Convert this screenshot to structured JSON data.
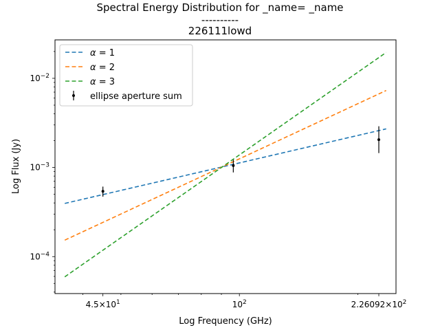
{
  "chart_data": {
    "type": "line",
    "title": [
      "Spectral Energy Distribution for _name=  _name",
      "----------",
      "226111lowd"
    ],
    "xlabel": "Log Frequency (GHz)",
    "ylabel": "Log Flux (Jy)",
    "x_scale": "log",
    "y_scale": "log",
    "xlim": [
      34,
      250
    ],
    "ylim": [
      3.85e-05,
      0.027
    ],
    "x_ticks": [
      {
        "value": 45,
        "mant": "4.5",
        "exp": "1"
      },
      {
        "value": 100,
        "mant": "",
        "exp": "2"
      },
      {
        "value": 226.092,
        "mant": "2.26092",
        "exp": "2"
      }
    ],
    "y_ticks": [
      {
        "value": 0.0001,
        "exp": "−4"
      },
      {
        "value": 0.001,
        "exp": "−3"
      },
      {
        "value": 0.01,
        "exp": "−2"
      }
    ],
    "legend_position": "top-left",
    "series": [
      {
        "name": "α = 1",
        "symbol": "α",
        "rest": " = 1",
        "color": "#1f77b4",
        "style": "dashed",
        "x": [
          36,
          236
        ],
        "y": [
          0.000395,
          0.00271
        ]
      },
      {
        "name": "α = 2",
        "symbol": "α",
        "rest": " = 2",
        "color": "#ff7f0e",
        "style": "dashed",
        "x": [
          36,
          236
        ],
        "y": [
          0.000153,
          0.0073
        ]
      },
      {
        "name": "α = 3",
        "symbol": "α",
        "rest": " = 3",
        "color": "#2ca02c",
        "style": "dashed",
        "x": [
          36,
          236
        ],
        "y": [
          5.93e-05,
          0.0195
        ]
      }
    ],
    "points": {
      "name": "ellipse aperture sum",
      "color": "#000000",
      "x": [
        45,
        96.5,
        226.092
      ],
      "y": [
        0.00054,
        0.00105,
        0.00205
      ],
      "yerr_low": [
        0.00047,
        0.00088,
        0.00145
      ],
      "yerr_high": [
        0.00061,
        0.00122,
        0.0029
      ]
    }
  }
}
